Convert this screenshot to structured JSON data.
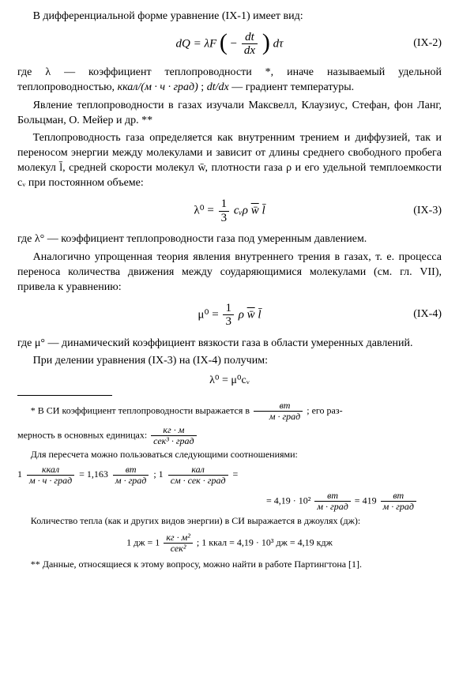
{
  "intro": "В дифференциальной форме уравнение (IX-1) имеет вид:",
  "eq2": {
    "prefix": "dQ = λF",
    "lpar": "(",
    "minus": "−",
    "frac_num": "dt",
    "frac_den": "dx",
    "rpar": ")",
    "suffix": "dτ",
    "tag": "(IX-2)"
  },
  "p_after_eq2_a": "где λ — коэффициент теплопроводности *, иначе называемый удельной теплопроводностью, ",
  "unit1": "ккал/(м · ч · град)",
  "p_after_eq2_b": "; ",
  "dtdx": "dt/dx",
  "p_after_eq2_c": " — градиент температуры.",
  "p_maxwell": "Явление теплопроводности в газах изучали Максвелл, Клаузиус, Стефан, фон Ланг, Больцман, О. Мейер и др. **",
  "p_lambda_intro": "Теплопроводность газа определяется как внутренним трением и диффузией, так и переносом энергии между молекулами и зависит от длины среднего свободного пробега молекул l̄, средней скорости молекул w̄, плотности газа ρ и его удельной темплоемкости cᵥ при постоянном объеме:",
  "eq3": {
    "lhs": "λ⁰ = ",
    "frac_num": "1",
    "frac_den": "3",
    "rhs": " cᵥρ",
    "wbar": "w̄",
    "lbar": "l̄",
    "tag": "(IX-3)"
  },
  "p_lambda0": "где λ° — коэффициент теплопроводности газа под умеренным давлением.",
  "p_mu_intro": "Аналогично упрощенная теория явления внутреннего трения в газах, т. е. процесса переноса количества движения между соударяющимися молекулами (см. гл. VII), привела к уравнению:",
  "eq4": {
    "lhs": "μ⁰ = ",
    "frac_num": "1",
    "frac_den": "3",
    "rhs": " ρ",
    "wbar": "w̄",
    "lbar": "l̄",
    "tag": "(IX-4)"
  },
  "p_mu0": "где μ° — динамический коэффициент вязкости газа в области умеренных давлений.",
  "p_divide": "При делении уравнения (IX-3) на (IX-4) получим:",
  "eq5": "λ⁰ = μ⁰cᵥ",
  "fn1_a": "* В СИ коэффициент теплопроводности выражается в ",
  "fn1_frac_num": "вт",
  "fn1_frac_den": "м · град",
  "fn1_b": "; его раз-",
  "fn1_c": "мерность в основных единицах: ",
  "fn1_dim_num": "кг · м",
  "fn1_dim_den": "сек³ · град",
  "fn1_d": "Для пересчета можно пользоваться следующими соотношениями:",
  "conv": {
    "one1": "1 ",
    "f1_num": "ккал",
    "f1_den": "м · ч · град",
    "eq1": " = 1,163 ",
    "f2_num": "вт",
    "f2_den": "м · град",
    "sep": "; 1 ",
    "f3_num": "кал",
    "f3_den": "см · сек · град",
    "eq2": " =",
    "line2a": "= 4,19 · 10² ",
    "f4_num": "вт",
    "f4_den": "м · град",
    "line2b": " = 419 ",
    "f5_num": "вт",
    "f5_den": "м · град"
  },
  "fn2_heat": "Количество тепла (как и других видов энергии) в СИ выражается в джоулях (дж):",
  "joule_lhs": "1 дж = 1 ",
  "joule_num": "кг · м²",
  "joule_den": "сек²",
  "joule_sep": ";    1 ккал = 4,19 · 10³ дж = 4,19 кдж",
  "fn_starstar": "** Данные, относящиеся к этому вопросу, можно найти в работе Партингтона [1]."
}
